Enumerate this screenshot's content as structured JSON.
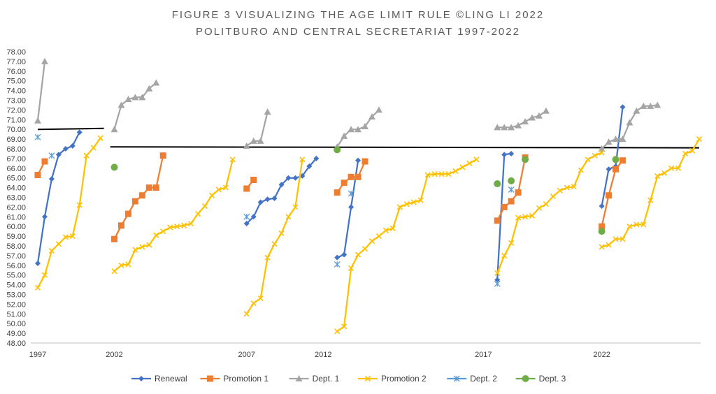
{
  "chart_data": {
    "type": "line",
    "title_lines": [
      "FIGURE 3 VISUALIZING THE AGE LIMIT RULE ©LING LI 2022",
      "POLITBURO AND CENTRAL SECRETARIAT 1997-2022"
    ],
    "xlabel": "",
    "ylabel": "",
    "x_ticks": [
      "1997",
      "2002",
      "2007",
      "2012",
      "2017",
      "2022"
    ],
    "x_range": [
      0,
      95
    ],
    "x_tick_positions": [
      0,
      11,
      30,
      41,
      64,
      81
    ],
    "ylim": [
      48.0,
      78.0
    ],
    "y_step": 1.0,
    "y_tick_decimals": 2,
    "grid": false,
    "legend_position": "bottom",
    "reference_lines": [
      {
        "name": "limit-1997",
        "x": [
          0,
          9.5
        ],
        "y": [
          70.0,
          70.1
        ]
      },
      {
        "name": "limit-2002-2022",
        "x": [
          10.4,
          95
        ],
        "y": [
          68.2,
          68.1
        ]
      }
    ],
    "series": [
      {
        "name": "Renewal",
        "color": "#4472C4",
        "marker": "diamond",
        "segments": [
          [
            [
              0,
              56.2
            ],
            [
              1,
              61.0
            ],
            [
              2,
              64.9
            ],
            [
              3,
              67.4
            ],
            [
              4,
              68.0
            ],
            [
              5,
              68.3
            ],
            [
              6,
              69.7
            ]
          ],
          [
            [
              30,
              60.3
            ],
            [
              31,
              61.0
            ],
            [
              32,
              62.5
            ],
            [
              33,
              62.8
            ],
            [
              34,
              62.9
            ],
            [
              35,
              64.3
            ],
            [
              36,
              65.0
            ],
            [
              37,
              65.0
            ],
            [
              38,
              65.2
            ],
            [
              39,
              66.2
            ],
            [
              40,
              67.0
            ]
          ],
          [
            [
              43,
              56.8
            ],
            [
              44,
              57.1
            ],
            [
              45,
              62.0
            ],
            [
              46,
              66.8
            ]
          ],
          [
            [
              66,
              54.5
            ],
            [
              67,
              67.4
            ],
            [
              68,
              67.5
            ]
          ],
          [
            [
              81,
              62.1
            ],
            [
              82,
              65.9
            ],
            [
              83,
              66.2
            ],
            [
              84,
              72.3
            ]
          ]
        ]
      },
      {
        "name": "Promotion 1",
        "color": "#ED7D31",
        "marker": "square",
        "segments": [
          [
            [
              0,
              65.3
            ],
            [
              1,
              66.7
            ]
          ],
          [
            [
              11,
              58.7
            ],
            [
              12,
              60.1
            ],
            [
              13,
              61.3
            ],
            [
              14,
              62.6
            ],
            [
              15,
              63.2
            ],
            [
              16,
              64.0
            ],
            [
              17,
              64.0
            ],
            [
              18,
              67.3
            ]
          ],
          [
            [
              30,
              63.9
            ],
            [
              31,
              64.8
            ]
          ],
          [
            [
              43,
              63.5
            ],
            [
              44,
              64.5
            ],
            [
              45,
              65.1
            ],
            [
              46,
              65.1
            ],
            [
              47,
              66.7
            ]
          ],
          [
            [
              66,
              60.6
            ],
            [
              67,
              62.0
            ],
            [
              68,
              62.6
            ],
            [
              69,
              63.5
            ],
            [
              70,
              67.1
            ]
          ],
          [
            [
              81,
              60.0
            ],
            [
              82,
              63.2
            ],
            [
              83,
              65.9
            ],
            [
              84,
              66.8
            ]
          ]
        ]
      },
      {
        "name": "Dept. 1",
        "color": "#A5A5A5",
        "marker": "triangle",
        "segments": [
          [
            [
              0,
              70.9
            ],
            [
              1,
              77.0
            ]
          ],
          [
            [
              11,
              70.0
            ],
            [
              12,
              72.5
            ],
            [
              13,
              73.1
            ],
            [
              14,
              73.3
            ],
            [
              15,
              73.3
            ],
            [
              16,
              74.2
            ],
            [
              17,
              74.8
            ]
          ],
          [
            [
              30,
              68.3
            ],
            [
              31,
              68.8
            ],
            [
              32,
              68.8
            ],
            [
              33,
              71.8
            ]
          ],
          [
            [
              43,
              68.2
            ],
            [
              44,
              69.3
            ],
            [
              45,
              70.0
            ],
            [
              46,
              70.0
            ],
            [
              47,
              70.3
            ],
            [
              48,
              71.3
            ],
            [
              49,
              72.0
            ]
          ],
          [
            [
              66,
              70.2
            ],
            [
              67,
              70.2
            ],
            [
              68,
              70.2
            ],
            [
              69,
              70.4
            ],
            [
              70,
              70.8
            ],
            [
              71,
              71.2
            ],
            [
              72,
              71.4
            ],
            [
              73,
              71.9
            ]
          ],
          [
            [
              81,
              68.0
            ],
            [
              82,
              68.7
            ],
            [
              83,
              69.0
            ],
            [
              84,
              69.0
            ],
            [
              85,
              70.7
            ],
            [
              86,
              71.9
            ],
            [
              87,
              72.4
            ],
            [
              88,
              72.4
            ],
            [
              89,
              72.5
            ]
          ]
        ]
      },
      {
        "name": "Promotion 2",
        "color": "#FFC000",
        "marker": "x",
        "segments": [
          [
            [
              0,
              53.7
            ],
            [
              1,
              55.0
            ],
            [
              2,
              57.5
            ],
            [
              3,
              58.2
            ],
            [
              4,
              58.9
            ],
            [
              5,
              59.0
            ],
            [
              6,
              62.2
            ],
            [
              7,
              67.3
            ],
            [
              8,
              68.1
            ],
            [
              9,
              69.1
            ]
          ],
          [
            [
              11,
              55.4
            ],
            [
              12,
              56.0
            ],
            [
              13,
              56.1
            ],
            [
              14,
              57.6
            ],
            [
              15,
              57.9
            ],
            [
              16,
              58.1
            ],
            [
              17,
              59.1
            ],
            [
              18,
              59.5
            ],
            [
              19,
              59.9
            ],
            [
              20,
              60.0
            ],
            [
              21,
              60.1
            ],
            [
              22,
              60.3
            ],
            [
              23,
              61.3
            ],
            [
              24,
              62.1
            ],
            [
              25,
              63.2
            ],
            [
              26,
              63.8
            ],
            [
              27,
              64.0
            ],
            [
              28,
              66.9
            ]
          ],
          [
            [
              30,
              51.0
            ],
            [
              31,
              52.1
            ],
            [
              32,
              52.6
            ],
            [
              33,
              56.8
            ],
            [
              34,
              58.2
            ],
            [
              35,
              59.3
            ],
            [
              36,
              61.0
            ],
            [
              37,
              62.0
            ],
            [
              38,
              66.9
            ]
          ],
          [
            [
              43,
              49.2
            ],
            [
              44,
              49.7
            ],
            [
              45,
              55.7
            ],
            [
              46,
              57.1
            ],
            [
              47,
              57.7
            ],
            [
              48,
              58.5
            ],
            [
              49,
              59.0
            ],
            [
              50,
              59.6
            ],
            [
              51,
              59.8
            ],
            [
              52,
              62.0
            ],
            [
              53,
              62.3
            ],
            [
              54,
              62.5
            ],
            [
              55,
              62.7
            ],
            [
              56,
              65.3
            ],
            [
              57,
              65.4
            ],
            [
              58,
              65.4
            ],
            [
              59,
              65.4
            ],
            [
              60,
              65.7
            ],
            [
              61,
              66.1
            ],
            [
              62,
              66.5
            ],
            [
              63,
              66.9
            ]
          ],
          [
            [
              66,
              55.2
            ],
            [
              67,
              57.0
            ],
            [
              68,
              58.3
            ],
            [
              69,
              60.9
            ],
            [
              70,
              61.0
            ],
            [
              71,
              61.1
            ],
            [
              72,
              61.9
            ],
            [
              73,
              62.3
            ],
            [
              74,
              63.1
            ],
            [
              75,
              63.7
            ],
            [
              76,
              64.0
            ],
            [
              77,
              64.1
            ],
            [
              78,
              65.8
            ],
            [
              79,
              66.9
            ],
            [
              80,
              67.3
            ],
            [
              81,
              67.6
            ]
          ],
          [
            [
              81,
              57.9
            ],
            [
              82,
              58.1
            ],
            [
              83,
              58.7
            ],
            [
              84,
              58.7
            ],
            [
              85,
              60.0
            ],
            [
              86,
              60.2
            ],
            [
              87,
              60.2
            ],
            [
              88,
              62.7
            ],
            [
              89,
              65.2
            ],
            [
              90,
              65.5
            ],
            [
              91,
              66.0
            ],
            [
              92,
              66.0
            ],
            [
              93,
              67.5
            ],
            [
              94,
              67.8
            ],
            [
              95,
              69.0
            ]
          ]
        ]
      },
      {
        "name": "Dept. 2",
        "color": "#5B9BD5",
        "marker": "asterisk",
        "segments": [
          [
            [
              0,
              69.2
            ]
          ],
          [
            [
              2,
              67.3
            ]
          ],
          [
            [
              30,
              61.0
            ]
          ],
          [
            [
              43,
              56.1
            ]
          ],
          [
            [
              45,
              63.4
            ]
          ],
          [
            [
              66,
              54.1
            ]
          ],
          [
            [
              68,
              63.8
            ]
          ]
        ]
      },
      {
        "name": "Dept. 3",
        "color": "#70AD47",
        "marker": "circle",
        "segments": [
          [
            [
              11,
              66.1
            ]
          ],
          [
            [
              43,
              67.9
            ]
          ],
          [
            [
              66,
              64.4
            ]
          ],
          [
            [
              68,
              64.7
            ]
          ],
          [
            [
              70,
              66.9
            ]
          ],
          [
            [
              81,
              59.5
            ]
          ],
          [
            [
              83,
              66.9
            ]
          ]
        ]
      }
    ]
  }
}
